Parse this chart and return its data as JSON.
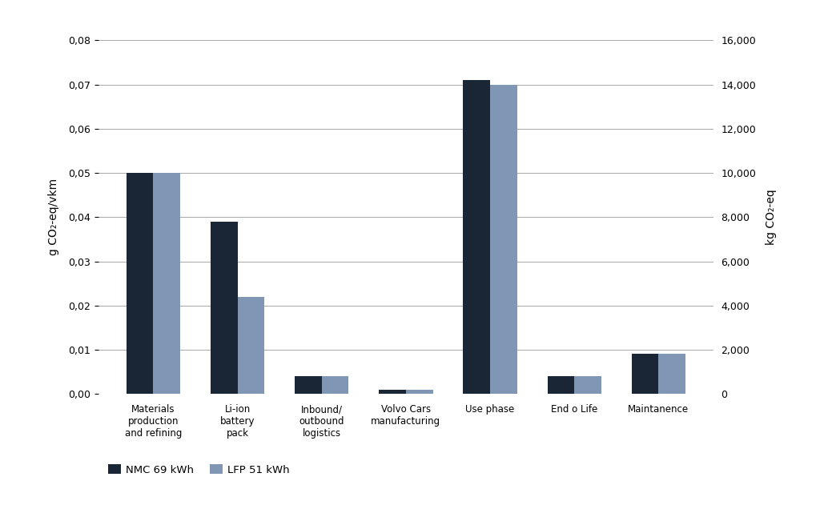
{
  "categories": [
    "Materials\nproduction\nand refining",
    "Li-ion\nbattery\npack",
    "Inbound/\noutbound\nlogistics",
    "Volvo Cars\nmanufacturing",
    "Use phase",
    "End o Life",
    "Maintanence"
  ],
  "nmc_values": [
    0.05,
    0.039,
    0.004,
    0.001,
    0.071,
    0.004,
    0.009
  ],
  "lfp_values": [
    0.05,
    0.022,
    0.004,
    0.001,
    0.07,
    0.004,
    0.009
  ],
  "nmc_color": "#1a2535",
  "lfp_color": "#7f96b5",
  "ylabel_left": "g CO₂-eq/vkm",
  "ylabel_right": "kg CO₂-eq",
  "ylim_left": [
    0,
    0.08
  ],
  "ylim_right": [
    0,
    16000
  ],
  "yticks_left": [
    0.0,
    0.01,
    0.02,
    0.03,
    0.04,
    0.05,
    0.06,
    0.07,
    0.08
  ],
  "yticks_right": [
    0,
    2000,
    4000,
    6000,
    8000,
    10000,
    12000,
    14000,
    16000
  ],
  "legend_labels": [
    "NMC 69 kWh",
    "LFP 51 kWh"
  ],
  "background_color": "#ffffff",
  "bar_width": 0.32,
  "grid_color": "#999999",
  "tick_fontsize": 9,
  "label_fontsize": 10
}
